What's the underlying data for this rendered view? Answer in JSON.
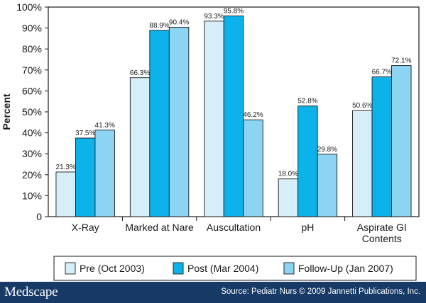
{
  "chart_data": {
    "type": "bar",
    "ylabel": "Percent",
    "ylim": [
      0,
      100
    ],
    "yticks": [
      "0",
      "10%",
      "20%",
      "30%",
      "40%",
      "50%",
      "60%",
      "70%",
      "80%",
      "90%",
      "100%"
    ],
    "categories": [
      [
        "X-Ray"
      ],
      [
        "Marked at Nare"
      ],
      [
        "Auscultation"
      ],
      [
        "pH"
      ],
      [
        "Aspirate GI",
        "Contents"
      ]
    ],
    "series": [
      {
        "name": "Pre (Oct 2003)",
        "color": "#d6eefa",
        "values": [
          21.3,
          66.3,
          93.3,
          18.0,
          50.6
        ],
        "labels": [
          "21.3%",
          "66.3%",
          "93.3%",
          "18.0%",
          "50.6%"
        ]
      },
      {
        "name": "Post (Mar 2004)",
        "color": "#0cb3ea",
        "values": [
          37.5,
          88.9,
          95.8,
          52.8,
          66.7
        ],
        "labels": [
          "37.5%",
          "88.9%",
          "95.8%",
          "52.8%",
          "66.7%"
        ]
      },
      {
        "name": "Follow-Up (Jan 2007)",
        "color": "#8dd4f2",
        "values": [
          41.3,
          90.4,
          46.2,
          29.8,
          72.1
        ],
        "labels": [
          "41.3%",
          "90.4%",
          "46.2%",
          "29.8%",
          "72.1%"
        ]
      }
    ],
    "legend_position": "bottom",
    "grid": false
  },
  "footer": {
    "brand": "Medscape",
    "source": "Source: Pediatr Nurs © 2009 Jannetti Publications, Inc."
  }
}
